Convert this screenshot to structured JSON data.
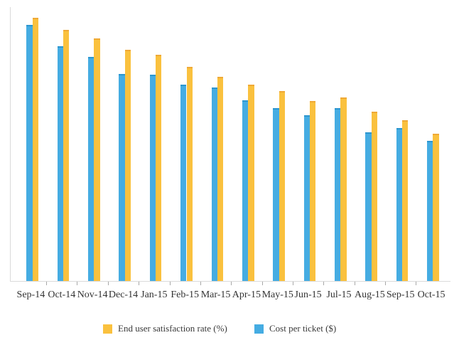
{
  "chart_data": {
    "type": "bar",
    "title": "",
    "categories": [
      "Sep-14",
      "Oct-14",
      "Nov-14",
      "Dec-14",
      "Jan-15",
      "Feb-15",
      "Mar-15",
      "Apr-15",
      "May-15",
      "Jun-15",
      "Jul-15",
      "Aug-15",
      "Sep-15",
      "Oct-15"
    ],
    "series": [
      {
        "name": "Cost per ticket ($)",
        "color": "#45ACE2",
        "cap_color": "#2C96CF",
        "values": [
          93.5,
          85.7,
          81.8,
          75.7,
          75.3,
          71.7,
          70.6,
          66.0,
          63.1,
          60.5,
          63.1,
          54.4,
          55.8,
          51.1
        ]
      },
      {
        "name": "End user satisfaction rate (%)",
        "color": "#FAC13E",
        "cap_color": "#EFA936",
        "values": [
          96.0,
          91.7,
          88.6,
          84.3,
          82.6,
          78.2,
          74.5,
          71.7,
          69.4,
          65.7,
          67.0,
          61.9,
          58.6,
          53.8
        ]
      }
    ],
    "ylim": [
      0,
      100
    ],
    "y_axis_labels_visible": false,
    "grid": false,
    "legend_position": "bottom"
  },
  "legend": {
    "items": [
      {
        "label": "End user satisfaction rate (%)",
        "color": "#FAC13E"
      },
      {
        "label": "Cost per ticket ($)",
        "color": "#45ACE2"
      }
    ]
  },
  "colors": {
    "axis_line": "#dadada",
    "tick": "#a8a8a8",
    "label_text": "#333333"
  }
}
